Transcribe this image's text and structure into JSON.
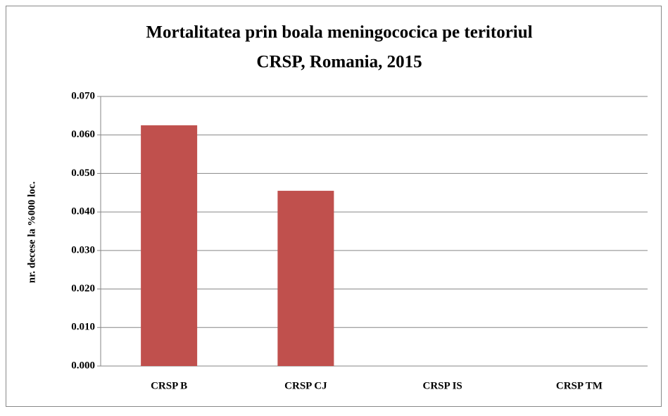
{
  "chart_data": {
    "type": "bar",
    "title": [
      "Mortalitatea prin boala meningococica pe teritoriul",
      "CRSP, Romania, 2015"
    ],
    "y_label": "nr. decese la %000 loc.",
    "categories": [
      "CRSP B",
      "CRSP CJ",
      "CRSP IS",
      "CRSP TM"
    ],
    "values": [
      0.0625,
      0.0455,
      0,
      0
    ],
    "color": "#c0504d",
    "ylim": [
      0,
      0.07
    ],
    "yticks": [
      {
        "value": 0,
        "label": "0.000"
      },
      {
        "value": 0.01,
        "label": "0.010"
      },
      {
        "value": 0.02,
        "label": "0.020"
      },
      {
        "value": 0.03,
        "label": "0.030"
      },
      {
        "value": 0.04,
        "label": "0.040"
      },
      {
        "value": 0.05,
        "label": "0.050"
      },
      {
        "value": 0.06,
        "label": "0.060"
      },
      {
        "value": 0.07,
        "label": "0.070"
      }
    ],
    "grid": true
  }
}
